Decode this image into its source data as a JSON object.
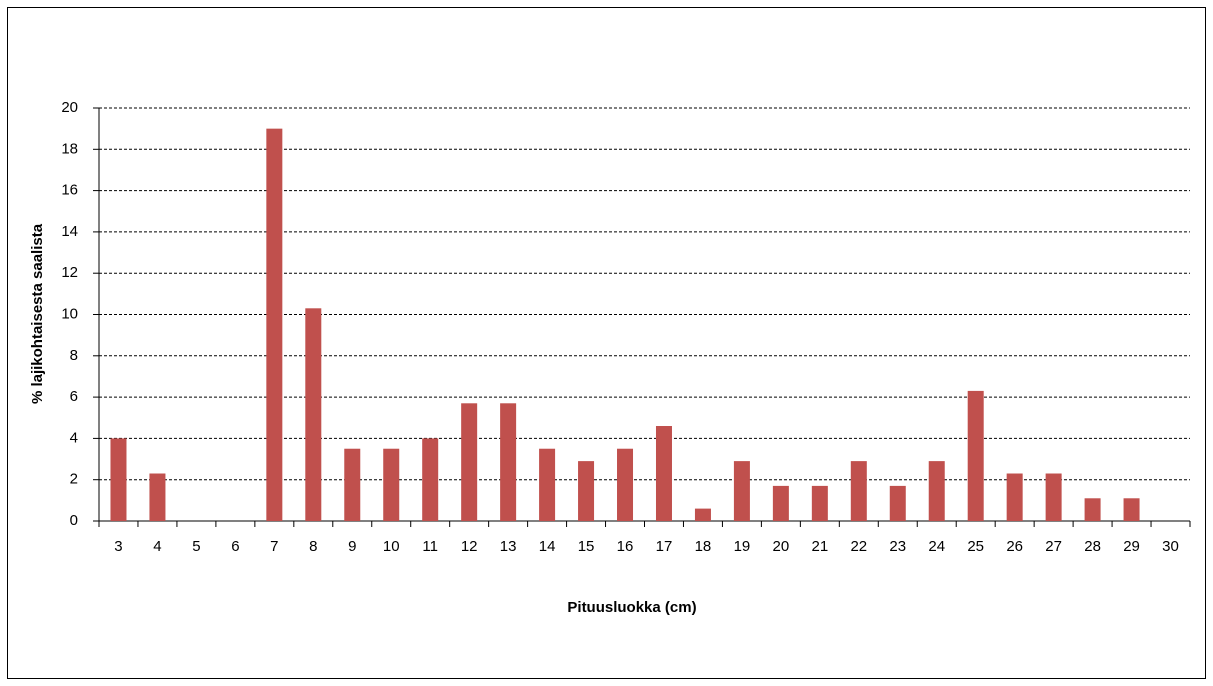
{
  "chart_data": {
    "type": "bar",
    "x_label": "Pituusluokka (cm)",
    "y_label": "% lajikohtaisesta saalista",
    "categories": [
      "3",
      "4",
      "5",
      "6",
      "7",
      "8",
      "9",
      "10",
      "11",
      "12",
      "13",
      "14",
      "15",
      "16",
      "17",
      "18",
      "19",
      "20",
      "21",
      "22",
      "23",
      "24",
      "25",
      "26",
      "27",
      "28",
      "29",
      "30"
    ],
    "values": [
      4,
      2.3,
      0,
      0,
      19,
      10.3,
      3.5,
      3.5,
      4,
      5.7,
      5.7,
      3.5,
      2.9,
      3.5,
      4.6,
      0.6,
      2.9,
      1.7,
      1.7,
      2.9,
      1.7,
      2.9,
      6.3,
      2.3,
      2.3,
      1.1,
      1.1,
      0
    ],
    "color": "#c0504d",
    "ylim": [
      0,
      20
    ],
    "yticks": [
      0,
      2,
      4,
      6,
      8,
      10,
      12,
      14,
      16,
      18,
      20
    ],
    "grid": true
  }
}
